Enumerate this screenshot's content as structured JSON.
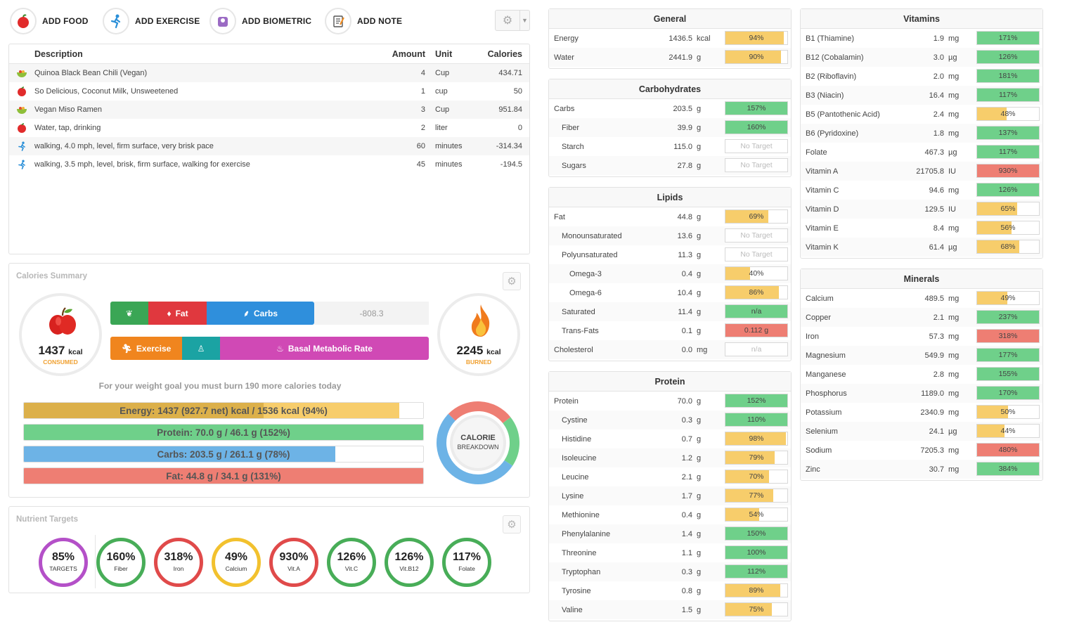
{
  "toolbar": {
    "actions": [
      {
        "label": "ADD FOOD",
        "icon": "apple-icon"
      },
      {
        "label": "ADD EXERCISE",
        "icon": "runner-icon"
      },
      {
        "label": "ADD BIOMETRIC",
        "icon": "scale-icon"
      },
      {
        "label": "ADD NOTE",
        "icon": "note-icon"
      }
    ],
    "settings_icon": "gear-icon"
  },
  "diary": {
    "headers": {
      "description": "Description",
      "amount": "Amount",
      "unit": "Unit",
      "calories": "Calories"
    },
    "rows": [
      {
        "icon": "bowl-icon",
        "description": "Quinoa Black Bean Chili (Vegan)",
        "amount": "4",
        "unit": "Cup",
        "calories": "434.71"
      },
      {
        "icon": "apple-icon",
        "description": "So Delicious, Coconut Milk, Unsweetened",
        "amount": "1",
        "unit": "cup",
        "calories": "50"
      },
      {
        "icon": "bowl-icon",
        "description": "Vegan Miso Ramen",
        "amount": "3",
        "unit": "Cup",
        "calories": "951.84"
      },
      {
        "icon": "apple-icon",
        "description": "Water, tap, drinking",
        "amount": "2",
        "unit": "liter",
        "calories": "0"
      },
      {
        "icon": "runner-icon",
        "description": "walking, 4.0 mph, level, firm surface, very brisk pace",
        "amount": "60",
        "unit": "minutes",
        "calories": "-314.34"
      },
      {
        "icon": "runner-icon",
        "description": "walking, 3.5 mph, level, brisk, firm surface, walking for exercise",
        "amount": "45",
        "unit": "minutes",
        "calories": "-194.5"
      }
    ]
  },
  "calories_summary": {
    "title": "Calories Summary",
    "consumed": {
      "value": "1437",
      "unit": "kcal",
      "label": "CONSUMED"
    },
    "burned": {
      "value": "2245",
      "unit": "kcal",
      "label": "BURNED"
    },
    "top_segments": [
      {
        "label": "",
        "icon": "leaf-icon",
        "color": "#3aa655"
      },
      {
        "label": "Fat",
        "icon": "drop-icon",
        "color": "#e0383e"
      },
      {
        "label": "Carbs",
        "icon": "wheat-icon",
        "color": "#2f8fdc"
      }
    ],
    "net_value": "-808.3",
    "bottom_segments": [
      {
        "label": "Exercise",
        "icon": "runner-icon",
        "color": "#f0851e"
      },
      {
        "label": "",
        "icon": "person-icon",
        "color": "#1ba3a3"
      },
      {
        "label": "Basal Metabolic Rate",
        "icon": "flame-icon",
        "color": "#d049b5"
      }
    ],
    "goal_message": "For your weight goal you must burn 190 more calories today",
    "bars": [
      {
        "text": "Energy: 1437 (927.7 net) kcal / 1536 kcal (94%)",
        "fill": 0.94,
        "color": "#f7cd6b"
      },
      {
        "text": "Protein: 70.0 g / 46.1 g (152%)",
        "fill": 1.0,
        "color": "#6fd08a"
      },
      {
        "text": "Carbs: 203.5 g / 261.1 g (78%)",
        "fill": 0.78,
        "color": "#6db3e6"
      },
      {
        "text": "Fat: 44.8 g / 34.1 g (131%)",
        "fill": 1.0,
        "color": "#ee7e73"
      }
    ],
    "breakdown_label": "CALORIE BREAKDOWN",
    "breakdown": [
      {
        "name": "protein",
        "fraction": 0.2,
        "color": "#6fd08a"
      },
      {
        "name": "carbs",
        "fraction": 0.53,
        "color": "#6db3e6"
      },
      {
        "name": "fat",
        "fraction": 0.27,
        "color": "#ee7e73"
      }
    ]
  },
  "nutrient_targets": {
    "title": "Nutrient Targets",
    "items": [
      {
        "pct": "85%",
        "name": "TARGETS",
        "color": "#b450c8"
      },
      {
        "pct": "160%",
        "name": "Fiber",
        "color": "#48ad58"
      },
      {
        "pct": "318%",
        "name": "Iron",
        "color": "#e04a4a"
      },
      {
        "pct": "49%",
        "name": "Calcium",
        "color": "#f2c12e"
      },
      {
        "pct": "930%",
        "name": "Vit.A",
        "color": "#e04a4a"
      },
      {
        "pct": "126%",
        "name": "Vit.C",
        "color": "#48ad58"
      },
      {
        "pct": "126%",
        "name": "Vit.B12",
        "color": "#48ad58"
      },
      {
        "pct": "117%",
        "name": "Folate",
        "color": "#48ad58"
      }
    ]
  },
  "colors": {
    "green": "#6fd08a",
    "yellow": "#f7cd6b",
    "red": "#ee7e73"
  },
  "nutrient_sections": [
    {
      "key": "general",
      "title": "General",
      "rows": [
        {
          "name": "Energy",
          "value": "1436.5",
          "unit": "kcal",
          "pct": "94%",
          "fill": 0.94,
          "color": "yellow",
          "indent": 0
        },
        {
          "name": "Water",
          "value": "2441.9",
          "unit": "g",
          "pct": "90%",
          "fill": 0.9,
          "color": "yellow",
          "indent": 0
        }
      ]
    },
    {
      "key": "carbohydrates",
      "title": "Carbohydrates",
      "rows": [
        {
          "name": "Carbs",
          "value": "203.5",
          "unit": "g",
          "pct": "157%",
          "fill": 1.0,
          "color": "green",
          "indent": 0
        },
        {
          "name": "Fiber",
          "value": "39.9",
          "unit": "g",
          "pct": "160%",
          "fill": 1.0,
          "color": "green",
          "indent": 1
        },
        {
          "name": "Starch",
          "value": "115.0",
          "unit": "g",
          "pct": "No Target",
          "fill": 0,
          "color": "none",
          "indent": 1
        },
        {
          "name": "Sugars",
          "value": "27.8",
          "unit": "g",
          "pct": "No Target",
          "fill": 0,
          "color": "none",
          "indent": 1
        }
      ]
    },
    {
      "key": "lipids",
      "title": "Lipids",
      "rows": [
        {
          "name": "Fat",
          "value": "44.8",
          "unit": "g",
          "pct": "69%",
          "fill": 0.69,
          "color": "yellow",
          "indent": 0
        },
        {
          "name": "Monounsaturated",
          "value": "13.6",
          "unit": "g",
          "pct": "No Target",
          "fill": 0,
          "color": "none",
          "indent": 1
        },
        {
          "name": "Polyunsaturated",
          "value": "11.3",
          "unit": "g",
          "pct": "No Target",
          "fill": 0,
          "color": "none",
          "indent": 1
        },
        {
          "name": "Omega-3",
          "value": "0.4",
          "unit": "g",
          "pct": "40%",
          "fill": 0.4,
          "color": "yellow",
          "indent": 2
        },
        {
          "name": "Omega-6",
          "value": "10.4",
          "unit": "g",
          "pct": "86%",
          "fill": 0.86,
          "color": "yellow",
          "indent": 2
        },
        {
          "name": "Saturated",
          "value": "11.4",
          "unit": "g",
          "pct": "n/a",
          "fill": 1.0,
          "color": "green",
          "indent": 1
        },
        {
          "name": "Trans-Fats",
          "value": "0.1",
          "unit": "g",
          "pct": "0.112 g",
          "fill": 1.0,
          "color": "red",
          "indent": 1
        },
        {
          "name": "Cholesterol",
          "value": "0.0",
          "unit": "mg",
          "pct": "n/a",
          "fill": 0,
          "color": "none",
          "indent": 0
        }
      ]
    },
    {
      "key": "protein",
      "title": "Protein",
      "rows": [
        {
          "name": "Protein",
          "value": "70.0",
          "unit": "g",
          "pct": "152%",
          "fill": 1.0,
          "color": "green",
          "indent": 0
        },
        {
          "name": "Cystine",
          "value": "0.3",
          "unit": "g",
          "pct": "110%",
          "fill": 1.0,
          "color": "green",
          "indent": 1
        },
        {
          "name": "Histidine",
          "value": "0.7",
          "unit": "g",
          "pct": "98%",
          "fill": 0.98,
          "color": "yellow",
          "indent": 1
        },
        {
          "name": "Isoleucine",
          "value": "1.2",
          "unit": "g",
          "pct": "79%",
          "fill": 0.79,
          "color": "yellow",
          "indent": 1
        },
        {
          "name": "Leucine",
          "value": "2.1",
          "unit": "g",
          "pct": "70%",
          "fill": 0.7,
          "color": "yellow",
          "indent": 1
        },
        {
          "name": "Lysine",
          "value": "1.7",
          "unit": "g",
          "pct": "77%",
          "fill": 0.77,
          "color": "yellow",
          "indent": 1
        },
        {
          "name": "Methionine",
          "value": "0.4",
          "unit": "g",
          "pct": "54%",
          "fill": 0.54,
          "color": "yellow",
          "indent": 1
        },
        {
          "name": "Phenylalanine",
          "value": "1.4",
          "unit": "g",
          "pct": "150%",
          "fill": 1.0,
          "color": "green",
          "indent": 1
        },
        {
          "name": "Threonine",
          "value": "1.1",
          "unit": "g",
          "pct": "100%",
          "fill": 1.0,
          "color": "green",
          "indent": 1
        },
        {
          "name": "Tryptophan",
          "value": "0.3",
          "unit": "g",
          "pct": "112%",
          "fill": 1.0,
          "color": "green",
          "indent": 1
        },
        {
          "name": "Tyrosine",
          "value": "0.8",
          "unit": "g",
          "pct": "89%",
          "fill": 0.89,
          "color": "yellow",
          "indent": 1
        },
        {
          "name": "Valine",
          "value": "1.5",
          "unit": "g",
          "pct": "75%",
          "fill": 0.75,
          "color": "yellow",
          "indent": 1
        }
      ]
    },
    {
      "key": "vitamins",
      "title": "Vitamins",
      "rows": [
        {
          "name": "B1 (Thiamine)",
          "value": "1.9",
          "unit": "mg",
          "pct": "171%",
          "fill": 1.0,
          "color": "green",
          "indent": 0
        },
        {
          "name": "B12 (Cobalamin)",
          "value": "3.0",
          "unit": "µg",
          "pct": "126%",
          "fill": 1.0,
          "color": "green",
          "indent": 0
        },
        {
          "name": "B2 (Riboflavin)",
          "value": "2.0",
          "unit": "mg",
          "pct": "181%",
          "fill": 1.0,
          "color": "green",
          "indent": 0
        },
        {
          "name": "B3 (Niacin)",
          "value": "16.4",
          "unit": "mg",
          "pct": "117%",
          "fill": 1.0,
          "color": "green",
          "indent": 0
        },
        {
          "name": "B5 (Pantothenic Acid)",
          "value": "2.4",
          "unit": "mg",
          "pct": "48%",
          "fill": 0.48,
          "color": "yellow",
          "indent": 0
        },
        {
          "name": "B6 (Pyridoxine)",
          "value": "1.8",
          "unit": "mg",
          "pct": "137%",
          "fill": 1.0,
          "color": "green",
          "indent": 0
        },
        {
          "name": "Folate",
          "value": "467.3",
          "unit": "µg",
          "pct": "117%",
          "fill": 1.0,
          "color": "green",
          "indent": 0
        },
        {
          "name": "Vitamin A",
          "value": "21705.8",
          "unit": "IU",
          "pct": "930%",
          "fill": 1.0,
          "color": "red",
          "indent": 0
        },
        {
          "name": "Vitamin C",
          "value": "94.6",
          "unit": "mg",
          "pct": "126%",
          "fill": 1.0,
          "color": "green",
          "indent": 0
        },
        {
          "name": "Vitamin D",
          "value": "129.5",
          "unit": "IU",
          "pct": "65%",
          "fill": 0.65,
          "color": "yellow",
          "indent": 0
        },
        {
          "name": "Vitamin E",
          "value": "8.4",
          "unit": "mg",
          "pct": "56%",
          "fill": 0.56,
          "color": "yellow",
          "indent": 0
        },
        {
          "name": "Vitamin K",
          "value": "61.4",
          "unit": "µg",
          "pct": "68%",
          "fill": 0.68,
          "color": "yellow",
          "indent": 0
        }
      ]
    },
    {
      "key": "minerals",
      "title": "Minerals",
      "rows": [
        {
          "name": "Calcium",
          "value": "489.5",
          "unit": "mg",
          "pct": "49%",
          "fill": 0.49,
          "color": "yellow",
          "indent": 0
        },
        {
          "name": "Copper",
          "value": "2.1",
          "unit": "mg",
          "pct": "237%",
          "fill": 1.0,
          "color": "green",
          "indent": 0
        },
        {
          "name": "Iron",
          "value": "57.3",
          "unit": "mg",
          "pct": "318%",
          "fill": 1.0,
          "color": "red",
          "indent": 0
        },
        {
          "name": "Magnesium",
          "value": "549.9",
          "unit": "mg",
          "pct": "177%",
          "fill": 1.0,
          "color": "green",
          "indent": 0
        },
        {
          "name": "Manganese",
          "value": "2.8",
          "unit": "mg",
          "pct": "155%",
          "fill": 1.0,
          "color": "green",
          "indent": 0
        },
        {
          "name": "Phosphorus",
          "value": "1189.0",
          "unit": "mg",
          "pct": "170%",
          "fill": 1.0,
          "color": "green",
          "indent": 0
        },
        {
          "name": "Potassium",
          "value": "2340.9",
          "unit": "mg",
          "pct": "50%",
          "fill": 0.5,
          "color": "yellow",
          "indent": 0
        },
        {
          "name": "Selenium",
          "value": "24.1",
          "unit": "µg",
          "pct": "44%",
          "fill": 0.44,
          "color": "yellow",
          "indent": 0
        },
        {
          "name": "Sodium",
          "value": "7205.3",
          "unit": "mg",
          "pct": "480%",
          "fill": 1.0,
          "color": "red",
          "indent": 0
        },
        {
          "name": "Zinc",
          "value": "30.7",
          "unit": "mg",
          "pct": "384%",
          "fill": 1.0,
          "color": "green",
          "indent": 0
        }
      ]
    }
  ]
}
